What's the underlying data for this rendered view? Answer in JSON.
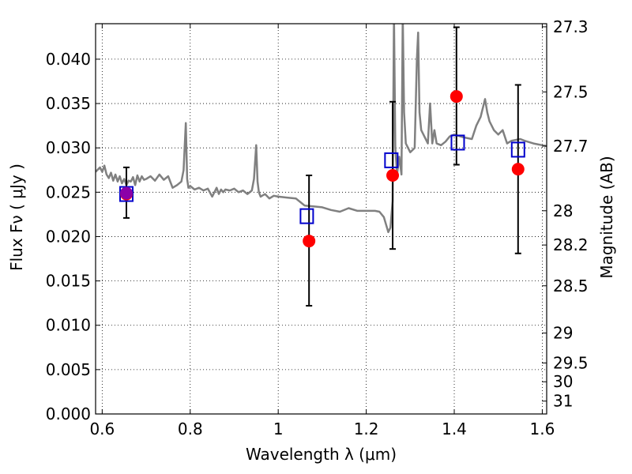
{
  "chart_data": {
    "type": "scatter",
    "xlabel": "Wavelength  λ (μm)",
    "ylabel": "Flux  Fν  ( μJy )",
    "ylabel_right": "Magnitude (AB)",
    "xlim": [
      0.585,
      1.61
    ],
    "ylim": [
      0.0,
      0.044
    ],
    "grid": true,
    "x_ticks": [
      0.6,
      0.8,
      1.0,
      1.2,
      1.4,
      1.6
    ],
    "x_tick_labels": [
      "0.6",
      "0.8",
      "1",
      "1.2",
      "1.4",
      "1.6"
    ],
    "y_ticks": [
      0.0,
      0.005,
      0.01,
      0.015,
      0.02,
      0.025,
      0.03,
      0.035,
      0.04
    ],
    "y_tick_labels": [
      "0.000",
      "0.005",
      "0.010",
      "0.015",
      "0.020",
      "0.025",
      "0.030",
      "0.035",
      "0.040"
    ],
    "right_ticks": [
      {
        "label": "27.3",
        "flux": 0.04365
      },
      {
        "label": "27.5",
        "flux": 0.03631
      },
      {
        "label": "27.7",
        "flux": 0.0302
      },
      {
        "label": "28",
        "flux": 0.02291
      },
      {
        "label": "28.2",
        "flux": 0.01905
      },
      {
        "label": "28.5",
        "flux": 0.01445
      },
      {
        "label": "29",
        "flux": 0.00912
      },
      {
        "label": "29.5",
        "flux": 0.00575
      },
      {
        "label": "30",
        "flux": 0.00363
      },
      {
        "label": "31",
        "flux": 0.00145
      }
    ],
    "series": [
      {
        "kind": "line",
        "color": "#808080",
        "x": [
          0.585,
          0.595,
          0.6,
          0.605,
          0.61,
          0.615,
          0.62,
          0.625,
          0.63,
          0.635,
          0.64,
          0.645,
          0.65,
          0.655,
          0.66,
          0.665,
          0.67,
          0.675,
          0.68,
          0.685,
          0.69,
          0.695,
          0.7,
          0.71,
          0.72,
          0.73,
          0.74,
          0.75,
          0.76,
          0.77,
          0.78,
          0.785,
          0.79,
          0.793,
          0.796,
          0.8,
          0.81,
          0.82,
          0.83,
          0.84,
          0.85,
          0.86,
          0.865,
          0.87,
          0.875,
          0.88,
          0.89,
          0.9,
          0.91,
          0.92,
          0.93,
          0.94,
          0.945,
          0.95,
          0.953,
          0.956,
          0.96,
          0.97,
          0.98,
          0.99,
          1.0,
          1.02,
          1.04,
          1.06,
          1.08,
          1.1,
          1.12,
          1.14,
          1.16,
          1.18,
          1.2,
          1.22,
          1.23,
          1.24,
          1.25,
          1.255,
          1.26,
          1.263,
          1.266,
          1.27,
          1.275,
          1.28,
          1.283,
          1.286,
          1.29,
          1.3,
          1.31,
          1.315,
          1.318,
          1.321,
          1.325,
          1.33,
          1.34,
          1.345,
          1.35,
          1.355,
          1.36,
          1.37,
          1.38,
          1.39,
          1.4,
          1.42,
          1.44,
          1.45,
          1.46,
          1.47,
          1.475,
          1.48,
          1.49,
          1.5,
          1.51,
          1.52,
          1.53,
          1.55,
          1.56,
          1.58,
          1.6,
          1.61
        ],
        "y": [
          0.0273,
          0.0278,
          0.0273,
          0.028,
          0.027,
          0.0266,
          0.0272,
          0.0263,
          0.027,
          0.0262,
          0.0268,
          0.026,
          0.0265,
          0.0258,
          0.0263,
          0.0262,
          0.0267,
          0.0258,
          0.0269,
          0.0262,
          0.0268,
          0.0264,
          0.0265,
          0.0268,
          0.0263,
          0.027,
          0.0264,
          0.0268,
          0.0255,
          0.0258,
          0.0262,
          0.0275,
          0.0328,
          0.0265,
          0.0255,
          0.0257,
          0.0253,
          0.0255,
          0.0252,
          0.0254,
          0.0245,
          0.0255,
          0.0248,
          0.0253,
          0.025,
          0.0253,
          0.0252,
          0.0254,
          0.025,
          0.0252,
          0.0248,
          0.0252,
          0.0265,
          0.0303,
          0.0262,
          0.025,
          0.0245,
          0.0248,
          0.0243,
          0.0246,
          0.0245,
          0.0244,
          0.0243,
          0.0235,
          0.0234,
          0.0233,
          0.023,
          0.0228,
          0.0232,
          0.0229,
          0.0229,
          0.0229,
          0.0228,
          0.0222,
          0.0205,
          0.021,
          0.024,
          0.045,
          0.03,
          0.027,
          0.029,
          0.027,
          0.045,
          0.034,
          0.0305,
          0.0295,
          0.03,
          0.04,
          0.043,
          0.034,
          0.032,
          0.0315,
          0.0305,
          0.035,
          0.0305,
          0.032,
          0.0305,
          0.0303,
          0.0307,
          0.0313,
          0.0315,
          0.0312,
          0.031,
          0.0325,
          0.0335,
          0.0355,
          0.034,
          0.033,
          0.032,
          0.0315,
          0.032,
          0.0305,
          0.0308,
          0.031,
          0.0308,
          0.0305,
          0.0303,
          0.0302
        ]
      },
      {
        "kind": "errorbar",
        "color": "#000000",
        "points": [
          {
            "x": 0.655,
            "low": 0.0221,
            "high": 0.0278
          },
          {
            "x": 1.07,
            "low": 0.0122,
            "high": 0.0269
          },
          {
            "x": 1.26,
            "low": 0.0186,
            "high": 0.0352
          },
          {
            "x": 1.405,
            "low": 0.0281,
            "high": 0.0436
          },
          {
            "x": 1.545,
            "low": 0.0181,
            "high": 0.0371
          }
        ]
      },
      {
        "kind": "markers",
        "shape": "square",
        "color": "#0000cc",
        "x": [
          0.655,
          1.065,
          1.257,
          1.408,
          1.545
        ],
        "y": [
          0.0248,
          0.0223,
          0.0286,
          0.0306,
          0.0298
        ]
      },
      {
        "kind": "markers",
        "shape": "circle",
        "color": "#ff0000",
        "x": [
          0.655,
          1.07,
          1.26,
          1.405,
          1.545
        ],
        "y": [
          0.0248,
          0.0195,
          0.0269,
          0.0358,
          0.0276
        ]
      },
      {
        "kind": "markers",
        "shape": "circle",
        "color": "#8b00a8",
        "x": [
          0.655
        ],
        "y": [
          0.0249
        ]
      }
    ]
  }
}
